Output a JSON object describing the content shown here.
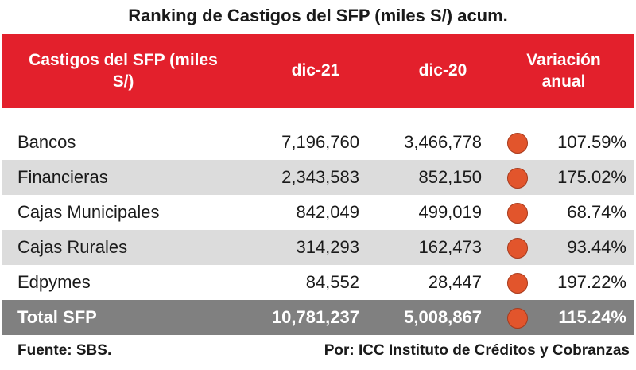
{
  "title": "Ranking de Castigos del SFP (miles S/) acum.",
  "header": {
    "col1": "Castigos del SFP (miles S/)",
    "col2": "dic-21",
    "col3": "dic-20",
    "col4": "Variación anual"
  },
  "rows": [
    {
      "label": "Bancos",
      "dic21": "7,196,760",
      "dic20": "3,466,778",
      "var": "107.59%"
    },
    {
      "label": "Financieras",
      "dic21": "2,343,583",
      "dic20": "852,150",
      "var": "175.02%"
    },
    {
      "label": "Cajas Municipales",
      "dic21": "842,049",
      "dic20": "499,019",
      "var": "68.74%"
    },
    {
      "label": "Cajas Rurales",
      "dic21": "314,293",
      "dic20": "162,473",
      "var": "93.44%"
    },
    {
      "label": "Edpymes",
      "dic21": "84,552",
      "dic20": "28,447",
      "var": "197.22%"
    }
  ],
  "total": {
    "label": "Total SFP",
    "dic21": "10,781,237",
    "dic20": "5,008,867",
    "var": "115.24%"
  },
  "indicator_icon": "orange-circle-icon",
  "colors": {
    "header": "#e3202c",
    "alt_row": "#dcdcdc",
    "total_row": "#808080",
    "indicator": "#e2552c"
  },
  "footer": {
    "source": "Fuente: SBS.",
    "credit": "Por: ICC Instituto de Créditos y Cobranzas"
  }
}
